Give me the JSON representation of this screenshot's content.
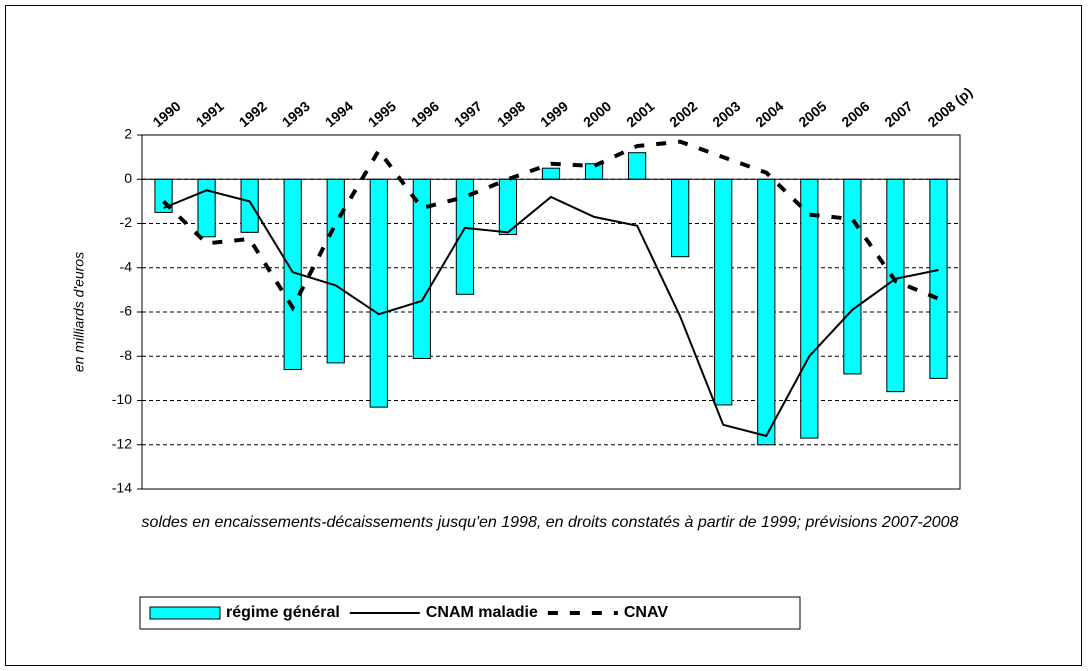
{
  "chart_data": {
    "type": "bar-line",
    "y_label": "en milliards d'euros",
    "note": "soldes en encaissements-décaissements jusqu'en 1998, en droits constatés à partir de 1999; prévisions 2007-2008",
    "categories": [
      "1990",
      "1991",
      "1992",
      "1993",
      "1994",
      "1995",
      "1996",
      "1997",
      "1998",
      "1999",
      "2000",
      "2001",
      "2002",
      "2003",
      "2004",
      "2005",
      "2006",
      "2007",
      "2008 (p)"
    ],
    "ylim": [
      -14,
      2
    ],
    "yticks": [
      -14,
      -12,
      -10,
      -8,
      -6,
      -4,
      -2,
      0,
      2
    ],
    "grid": true,
    "series": [
      {
        "name": "régime général",
        "type": "bar",
        "color": "#00ffff",
        "values": [
          -1.5,
          -2.6,
          -2.4,
          -8.6,
          -8.3,
          -10.3,
          -8.1,
          -5.2,
          -2.5,
          0.5,
          0.7,
          1.2,
          -3.5,
          -10.2,
          -12.0,
          -11.7,
          -8.8,
          -9.6,
          -9.0
        ]
      },
      {
        "name": "CNAM maladie",
        "type": "line",
        "color": "#000000",
        "dash": false,
        "values": [
          -1.3,
          -0.5,
          -1.0,
          -4.2,
          -4.8,
          -6.1,
          -5.5,
          -2.2,
          -2.4,
          -0.8,
          -1.7,
          -2.1,
          -6.2,
          -11.1,
          -11.6,
          -8.0,
          -5.9,
          -4.5,
          -4.1
        ]
      },
      {
        "name": "CNAV",
        "type": "line",
        "color": "#000000",
        "dash": true,
        "values": [
          -1.0,
          -2.9,
          -2.7,
          -5.8,
          -2.0,
          1.3,
          -1.3,
          -0.8,
          0.0,
          0.7,
          0.6,
          1.5,
          1.7,
          1.0,
          0.3,
          -1.6,
          -1.8,
          -4.6,
          -5.4
        ]
      }
    ]
  }
}
